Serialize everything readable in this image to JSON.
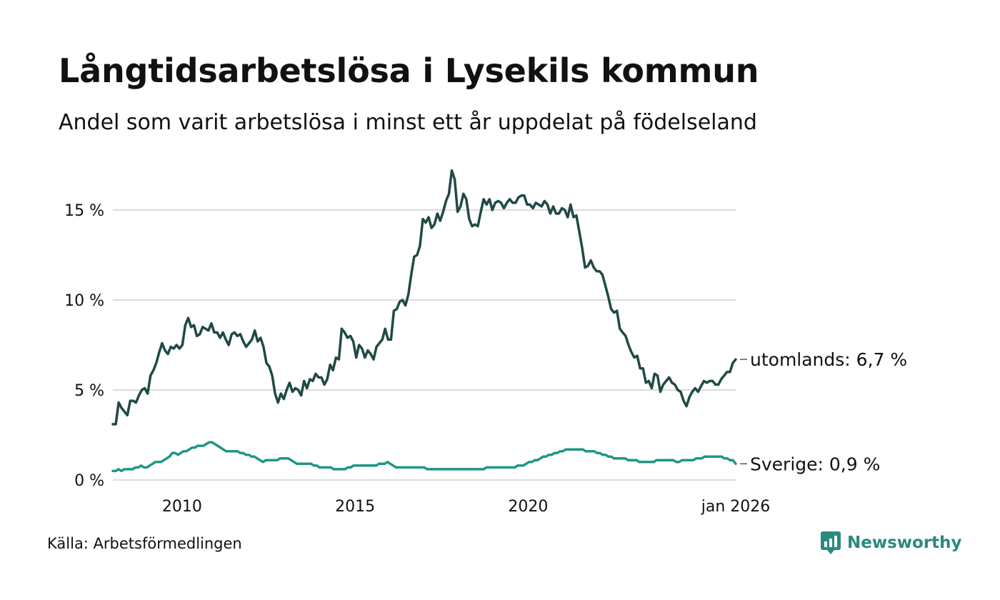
{
  "title": "Långtidsarbetslösa i Lysekils kommun",
  "subtitle": "Andel som varit arbetslösa i minst ett år uppdelat på födelseland",
  "source": "Källa: Arbetsförmedlingen",
  "brand": {
    "name": "Newsworthy",
    "icon": "newsworthy-logo-icon",
    "color": "#2a8a7d"
  },
  "chart_data": {
    "type": "line",
    "x_start": 2008.0,
    "x_end": 2026.0,
    "xlim": [
      2008.0,
      2026.0
    ],
    "ylim": [
      0,
      17.5
    ],
    "x_ticks": [
      {
        "value": 2010,
        "label": "2010"
      },
      {
        "value": 2015,
        "label": "2015"
      },
      {
        "value": 2020,
        "label": "2020"
      },
      {
        "value": 2026,
        "label": "jan 2026"
      }
    ],
    "y_ticks": [
      {
        "value": 0,
        "label": "0 %"
      },
      {
        "value": 5,
        "label": "5 %"
      },
      {
        "value": 10,
        "label": "10 %"
      },
      {
        "value": 15,
        "label": "15 %"
      }
    ],
    "grid": true,
    "series": [
      {
        "name": "utomlands",
        "label": "utomlands: 6,7 %",
        "color": "#1f4a45",
        "values": [
          3.1,
          3.1,
          4.3,
          4.0,
          3.8,
          3.6,
          4.4,
          4.4,
          4.3,
          4.7,
          5.0,
          5.1,
          4.8,
          5.8,
          6.1,
          6.5,
          7.1,
          7.6,
          7.2,
          7.0,
          7.4,
          7.3,
          7.5,
          7.3,
          7.5,
          8.6,
          9.0,
          8.5,
          8.6,
          8.0,
          8.1,
          8.5,
          8.4,
          8.3,
          8.7,
          8.2,
          8.2,
          7.9,
          8.2,
          7.8,
          7.5,
          8.1,
          8.2,
          8.0,
          8.1,
          7.7,
          7.4,
          7.6,
          7.8,
          8.3,
          7.7,
          7.9,
          7.4,
          6.5,
          6.3,
          5.8,
          4.8,
          4.3,
          4.8,
          4.5,
          5.0,
          5.4,
          4.9,
          5.1,
          5.0,
          4.7,
          5.5,
          5.1,
          5.6,
          5.5,
          5.9,
          5.7,
          5.7,
          5.3,
          5.6,
          6.4,
          6.1,
          6.8,
          6.7,
          8.4,
          8.2,
          7.9,
          8.0,
          7.7,
          6.8,
          7.5,
          7.3,
          6.8,
          7.2,
          7.0,
          6.7,
          7.4,
          7.6,
          7.8,
          8.4,
          7.8,
          7.8,
          9.4,
          9.5,
          9.9,
          10.0,
          9.7,
          10.3,
          11.4,
          12.4,
          12.5,
          13.0,
          14.5,
          14.3,
          14.6,
          14.0,
          14.2,
          14.8,
          14.4,
          14.9,
          15.5,
          15.9,
          17.2,
          16.7,
          14.9,
          15.2,
          15.9,
          15.6,
          14.5,
          14.1,
          14.2,
          14.1,
          14.9,
          15.6,
          15.3,
          15.6,
          15.0,
          15.4,
          15.5,
          15.4,
          15.1,
          15.4,
          15.6,
          15.4,
          15.4,
          15.7,
          15.8,
          15.8,
          15.3,
          15.3,
          15.1,
          15.4,
          15.3,
          15.2,
          15.5,
          15.3,
          14.8,
          15.2,
          14.8,
          14.8,
          15.1,
          15.0,
          14.6,
          15.3,
          14.6,
          14.7,
          13.8,
          12.9,
          11.8,
          11.9,
          12.2,
          11.8,
          11.6,
          11.6,
          11.4,
          10.8,
          10.2,
          9.5,
          9.3,
          9.4,
          8.4,
          8.2,
          8.0,
          7.5,
          7.1,
          6.8,
          6.9,
          6.2,
          6.2,
          5.4,
          5.5,
          5.1,
          5.9,
          5.8,
          4.9,
          5.3,
          5.5,
          5.7,
          5.4,
          5.3,
          5.0,
          4.9,
          4.4,
          4.1,
          4.6,
          4.9,
          5.1,
          4.9,
          5.2,
          5.5,
          5.4,
          5.5,
          5.5,
          5.3,
          5.3,
          5.6,
          5.8,
          6.0,
          6.0,
          6.5,
          6.7
        ]
      },
      {
        "name": "Sverige",
        "label": "Sverige: 0,9 %",
        "color": "#1f9685",
        "values": [
          0.5,
          0.5,
          0.6,
          0.5,
          0.6,
          0.6,
          0.6,
          0.6,
          0.7,
          0.7,
          0.8,
          0.7,
          0.7,
          0.8,
          0.9,
          1.0,
          1.0,
          1.0,
          1.1,
          1.2,
          1.3,
          1.5,
          1.5,
          1.4,
          1.5,
          1.6,
          1.6,
          1.7,
          1.8,
          1.8,
          1.9,
          1.9,
          1.9,
          2.0,
          2.1,
          2.1,
          2.0,
          1.9,
          1.8,
          1.7,
          1.6,
          1.6,
          1.6,
          1.6,
          1.6,
          1.5,
          1.5,
          1.4,
          1.4,
          1.3,
          1.3,
          1.2,
          1.1,
          1.0,
          1.1,
          1.1,
          1.1,
          1.1,
          1.1,
          1.2,
          1.2,
          1.2,
          1.2,
          1.1,
          1.0,
          0.9,
          0.9,
          0.9,
          0.9,
          0.9,
          0.9,
          0.8,
          0.8,
          0.7,
          0.7,
          0.7,
          0.7,
          0.7,
          0.6,
          0.6,
          0.6,
          0.6,
          0.6,
          0.7,
          0.7,
          0.8,
          0.8,
          0.8,
          0.8,
          0.8,
          0.8,
          0.8,
          0.8,
          0.8,
          0.9,
          0.9,
          0.9,
          1.0,
          0.9,
          0.8,
          0.7,
          0.7,
          0.7,
          0.7,
          0.7,
          0.7,
          0.7,
          0.7,
          0.7,
          0.7,
          0.7,
          0.6,
          0.6,
          0.6,
          0.6,
          0.6,
          0.6,
          0.6,
          0.6,
          0.6,
          0.6,
          0.6,
          0.6,
          0.6,
          0.6,
          0.6,
          0.6,
          0.6,
          0.6,
          0.6,
          0.6,
          0.6,
          0.7,
          0.7,
          0.7,
          0.7,
          0.7,
          0.7,
          0.7,
          0.7,
          0.7,
          0.7,
          0.7,
          0.8,
          0.8,
          0.8,
          0.9,
          1.0,
          1.0,
          1.1,
          1.1,
          1.2,
          1.3,
          1.3,
          1.4,
          1.4,
          1.5,
          1.5,
          1.6,
          1.6,
          1.7,
          1.7,
          1.7,
          1.7,
          1.7,
          1.7,
          1.7,
          1.6,
          1.6,
          1.6,
          1.6,
          1.5,
          1.5,
          1.4,
          1.4,
          1.3,
          1.3,
          1.2,
          1.2,
          1.2,
          1.2,
          1.2,
          1.1,
          1.1,
          1.1,
          1.1,
          1.0,
          1.0,
          1.0,
          1.0,
          1.0,
          1.0,
          1.1,
          1.1,
          1.1,
          1.1,
          1.1,
          1.1,
          1.1,
          1.0,
          1.0,
          1.1,
          1.1,
          1.1,
          1.1,
          1.1,
          1.2,
          1.2,
          1.2,
          1.3,
          1.3,
          1.3,
          1.3,
          1.3,
          1.3,
          1.3,
          1.2,
          1.2,
          1.1,
          1.1,
          0.9
        ]
      }
    ]
  }
}
